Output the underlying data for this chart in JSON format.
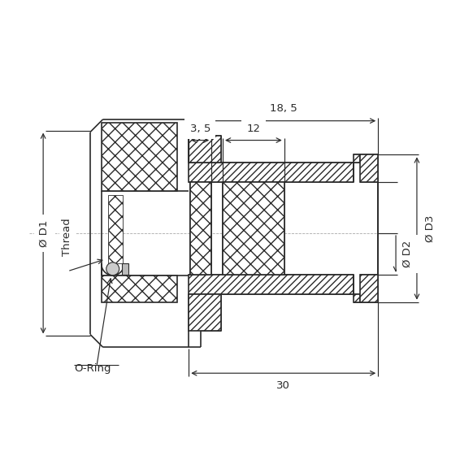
{
  "bg_color": "#ffffff",
  "lc": "#2a2a2a",
  "dc": "#2a2a2a",
  "figsize": [
    5.82,
    5.82
  ],
  "dpi": 100,
  "ann_18_5": "18, 5",
  "ann_3_5": "3, 5",
  "ann_12": "12",
  "ann_30": "30",
  "ann_D1": "Ø D1",
  "ann_D2": "Ø D2",
  "ann_D3": "Ø D3",
  "ann_Thread": "Thread",
  "ann_ORing": "O-Ring"
}
